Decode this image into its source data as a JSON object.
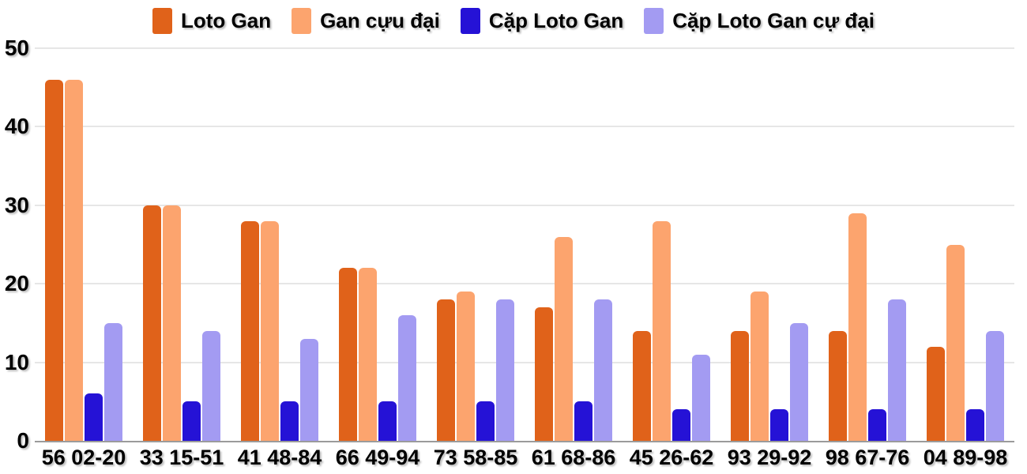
{
  "chart_data": {
    "type": "bar",
    "title": "",
    "xlabel": "",
    "ylabel": "",
    "categories": [
      "56 02-20",
      "33 15-51",
      "41 48-84",
      "66 49-94",
      "73 58-85",
      "61 68-86",
      "45 26-62",
      "93 29-92",
      "98 67-76",
      "04 89-98"
    ],
    "series": [
      {
        "name": "Loto Gan",
        "color": "#e0621a",
        "values": [
          46,
          30,
          28,
          22,
          18,
          17,
          14,
          14,
          14,
          12
        ]
      },
      {
        "name": "Gan cựu đại",
        "color": "#fca46e",
        "values": [
          46,
          30,
          28,
          22,
          19,
          26,
          28,
          19,
          29,
          25
        ]
      },
      {
        "name": "Cặp Loto Gan",
        "color": "#2512d6",
        "values": [
          6,
          5,
          5,
          5,
          5,
          5,
          4,
          4,
          4,
          4
        ]
      },
      {
        "name": "Cặp Loto Gan cự đại",
        "color": "#a39bf2",
        "values": [
          15,
          14,
          13,
          16,
          18,
          18,
          11,
          15,
          18,
          14
        ]
      }
    ],
    "ylim": [
      0,
      50
    ],
    "yticks": [
      0,
      10,
      20,
      30,
      40,
      50
    ],
    "grid": true,
    "legend_position": "top"
  },
  "colors": {
    "grid": "#e6e6e6",
    "axis_line": "#9b9b9b",
    "text": "#000000",
    "background": "#ffffff"
  }
}
